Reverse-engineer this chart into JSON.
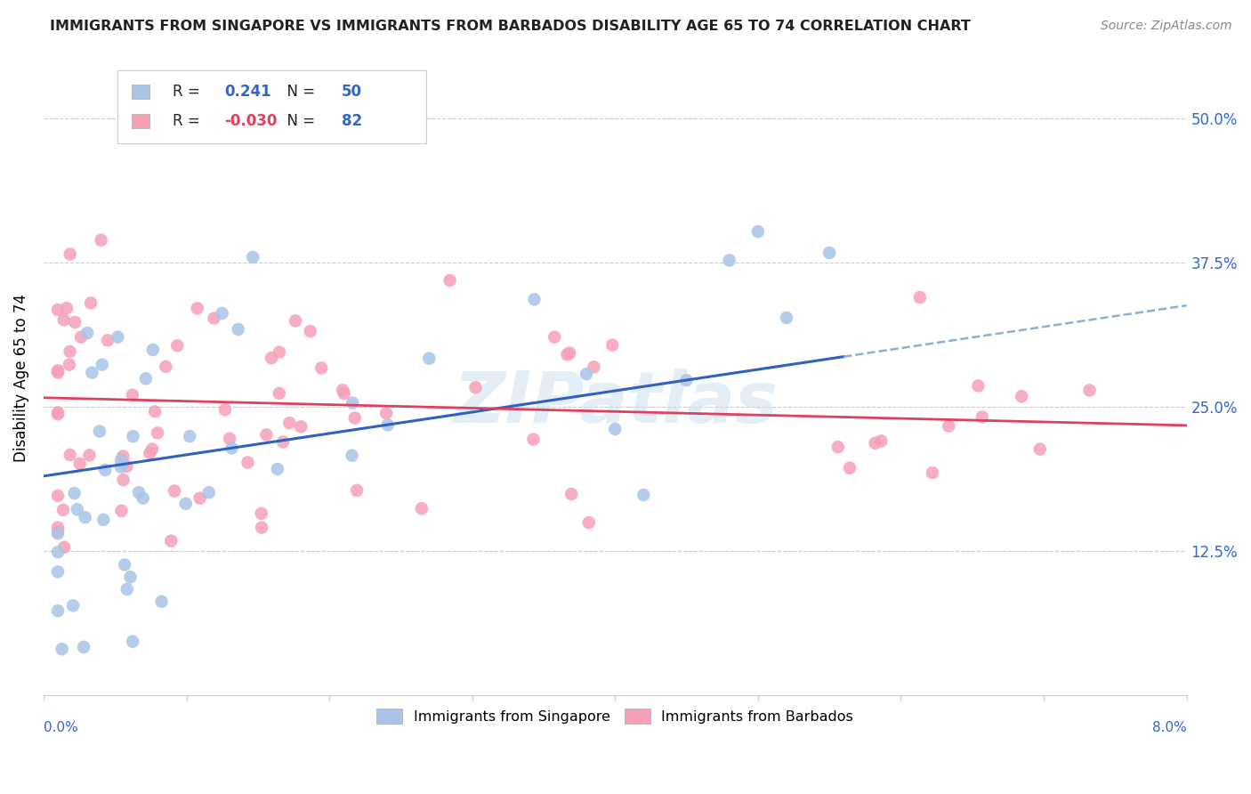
{
  "title": "IMMIGRANTS FROM SINGAPORE VS IMMIGRANTS FROM BARBADOS DISABILITY AGE 65 TO 74 CORRELATION CHART",
  "source": "Source: ZipAtlas.com",
  "ylabel": "Disability Age 65 to 74",
  "xlim": [
    0.0,
    0.08
  ],
  "ylim": [
    0.0,
    0.55
  ],
  "singapore_color": "#aac4e8",
  "barbados_color": "#f5a0b5",
  "singapore_line_color": "#3060c0",
  "barbados_line_color": "#e04060",
  "dashed_color": "#8ab0d8",
  "R_singapore": 0.241,
  "N_singapore": 50,
  "R_barbados": -0.03,
  "N_barbados": 82,
  "watermark": "ZIPatlas",
  "ytick_vals": [
    0.125,
    0.25,
    0.375,
    0.5
  ],
  "ytick_labels": [
    "12.5%",
    "25.0%",
    "37.5%",
    "50.0%"
  ],
  "legend_R_color": "#3366cc",
  "legend_N_color": "#3366cc"
}
